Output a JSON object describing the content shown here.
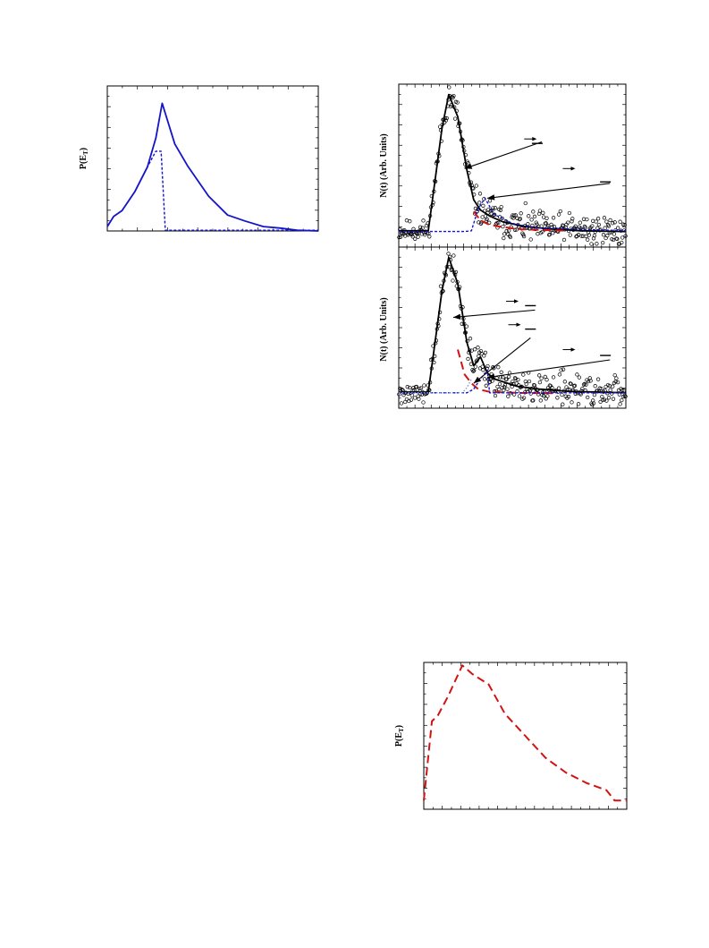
{
  "chart_data": [
    {
      "id": "top-left",
      "type": "line",
      "ylabel": "P(E",
      "ylabel_sub": "T",
      "ylabel_close": ")",
      "xlim": [
        0,
        10
      ],
      "ylim": [
        0,
        10
      ],
      "series": [
        {
          "style": "solid",
          "color": "#1414c8",
          "x": [
            0,
            0.3,
            0.7,
            1.3,
            1.9,
            2.3,
            2.6,
            3.2,
            3.8,
            4.8,
            5.7,
            6.5,
            7.4,
            8.2,
            9.0,
            10
          ],
          "y": [
            0.3,
            1.0,
            1.4,
            2.7,
            4.4,
            6.4,
            8.8,
            6.0,
            4.5,
            2.4,
            1.1,
            0.7,
            0.3,
            0.2,
            0.05,
            0.0
          ]
        },
        {
          "style": "dashed",
          "color": "#1414c8",
          "x": [
            0,
            0.3,
            0.7,
            1.3,
            1.9,
            2.3,
            2.55,
            2.75,
            10
          ],
          "y": [
            0.3,
            1.0,
            1.4,
            2.7,
            4.4,
            5.5,
            5.5,
            0.05,
            0.05
          ]
        }
      ]
    },
    {
      "id": "middle-right-top",
      "type": "scatter",
      "ylabel": "N(t) (Arb. Units)",
      "xlim": [
        0,
        10
      ],
      "ylim": [
        -1,
        10
      ],
      "scatter_points": {
        "mode": "noisy-fit",
        "count": 300,
        "seed": 11
      },
      "series": [
        {
          "style": "solid",
          "color": "#000000",
          "x": [
            0,
            1.3,
            1.6,
            1.9,
            2.2,
            2.6,
            3.0,
            3.3,
            3.6,
            4.0,
            4.6,
            5.5,
            6.5,
            8.0,
            10
          ],
          "y": [
            0.1,
            0.1,
            3.5,
            7.0,
            9.3,
            7.8,
            4.2,
            2.2,
            1.5,
            1.1,
            0.7,
            0.4,
            0.25,
            0.1,
            0.05
          ]
        },
        {
          "style": "dashed",
          "color": "#1414c8",
          "x": [
            0,
            2.9,
            3.2,
            3.5,
            3.8,
            4.2,
            5.0,
            6.0,
            10
          ],
          "y": [
            0.05,
            0.05,
            0.1,
            1.6,
            2.3,
            1.2,
            0.6,
            0.3,
            0.1
          ]
        },
        {
          "style": "longdash",
          "color": "#d01414",
          "x": [
            3.3,
            3.6,
            4.0,
            4.6,
            5.4,
            6.4,
            7.4
          ],
          "y": [
            1.4,
            0.8,
            0.5,
            0.35,
            0.2,
            0.15,
            0.1
          ]
        }
      ],
      "arrows": [
        {
          "x1": 6.3,
          "y1": 6.1,
          "x2": 2.9,
          "y2": 4.3
        },
        {
          "x1": 9.3,
          "y1": 3.3,
          "x2": 3.9,
          "y2": 2.3
        }
      ],
      "small_arrows": [
        {
          "x": 5.8,
          "y": 6.3
        },
        {
          "x": 7.5,
          "y": 4.3
        }
      ],
      "bars": [
        {
          "x": 6.1,
          "y": 6.0
        },
        {
          "x": 9.1,
          "y": 3.4
        }
      ]
    },
    {
      "id": "middle-right-bottom",
      "type": "scatter",
      "ylabel": "N(t) (Arb. Units)",
      "xlim": [
        0,
        10
      ],
      "ylim": [
        -1,
        10
      ],
      "scatter_points": {
        "mode": "noisy-fit",
        "count": 300,
        "seed": 27
      },
      "series": [
        {
          "style": "solid",
          "color": "#000000",
          "x": [
            0,
            1.3,
            1.6,
            1.9,
            2.2,
            2.6,
            3.0,
            3.3,
            3.6,
            3.9,
            4.2,
            4.6,
            5.2,
            6.2,
            7.5,
            10
          ],
          "y": [
            0.1,
            0.1,
            3.5,
            7.0,
            9.3,
            7.5,
            3.5,
            1.9,
            2.5,
            1.4,
            1.0,
            0.8,
            0.5,
            0.3,
            0.15,
            0.05
          ]
        },
        {
          "style": "longdash",
          "color": "#d01414",
          "x": [
            2.6,
            2.9,
            3.2,
            3.5,
            3.9,
            4.5,
            5.5,
            7.0
          ],
          "y": [
            3.0,
            1.3,
            0.7,
            0.3,
            0.15,
            0.08,
            0.04,
            0.02
          ]
        },
        {
          "style": "dashed",
          "color": "#1414c8",
          "x": [
            0,
            3.0,
            3.3,
            3.6,
            3.9,
            4.0,
            10
          ],
          "y": [
            0.05,
            0.05,
            0.3,
            1.0,
            1.6,
            0.05,
            0.05
          ]
        },
        {
          "style": "dotted",
          "color": "#7a9fd0",
          "x": [
            0,
            2.8,
            3.0,
            3.2
          ],
          "y": [
            0.05,
            0.05,
            0.4,
            1.0
          ]
        }
      ],
      "arrows": [
        {
          "x1": 6.0,
          "y1": 5.7,
          "x2": 2.4,
          "y2": 5.2
        },
        {
          "x1": 5.8,
          "y1": 3.8,
          "x2": 3.3,
          "y2": 0.7
        },
        {
          "x1": 9.3,
          "y1": 2.3,
          "x2": 3.9,
          "y2": 1.1
        }
      ],
      "small_arrows": [
        {
          "x": 5.0,
          "y": 6.3
        },
        {
          "x": 5.1,
          "y": 4.7
        },
        {
          "x": 7.5,
          "y": 3.0
        }
      ],
      "bars": [
        {
          "x": 5.8,
          "y": 6.0
        },
        {
          "x": 5.8,
          "y": 4.4
        },
        {
          "x": 9.1,
          "y": 2.6
        }
      ]
    },
    {
      "id": "bottom-right",
      "type": "line",
      "ylabel": "P(E",
      "ylabel_sub": "T",
      "ylabel_close": ")",
      "xlim": [
        0,
        10
      ],
      "ylim": [
        0,
        10
      ],
      "series": [
        {
          "style": "longdash",
          "color": "#d01414",
          "x": [
            0,
            0.4,
            0.7,
            1.2,
            1.9,
            2.4,
            3.2,
            4.0,
            5.0,
            6.0,
            7.0,
            8.0,
            9.0,
            9.4,
            10
          ],
          "y": [
            0.6,
            6.0,
            6.4,
            7.7,
            9.8,
            9.2,
            8.5,
            6.5,
            5.0,
            3.5,
            2.5,
            1.8,
            1.3,
            0.6,
            0.6
          ]
        }
      ]
    }
  ]
}
